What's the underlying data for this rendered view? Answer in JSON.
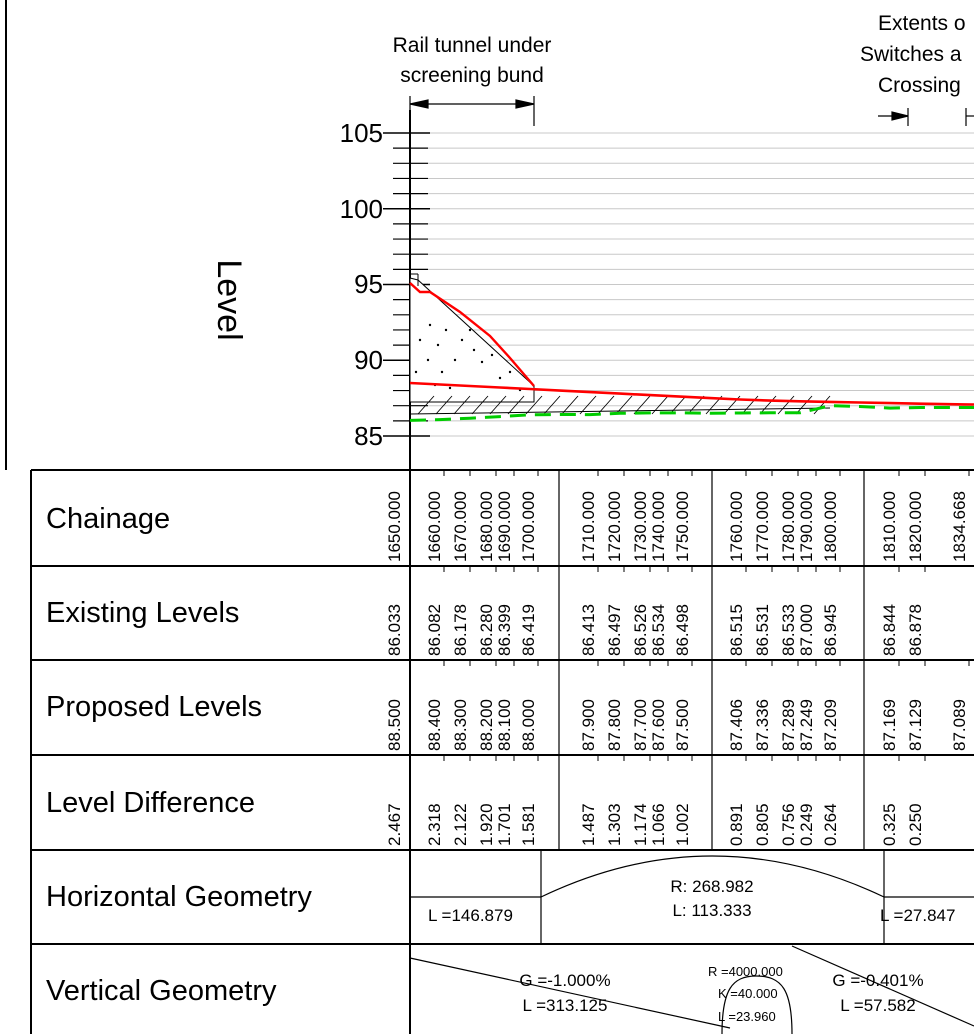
{
  "axis": {
    "label": "Level",
    "ticks": [
      "105",
      "100",
      "95",
      "90",
      "85"
    ]
  },
  "annotations": {
    "tunnel_line1": "Rail tunnel under",
    "tunnel_line2": "screening bund",
    "extents_line1": "Extents o",
    "extents_line2": "Switches a",
    "extents_line3": "Crossing"
  },
  "rows": {
    "chainage": "Chainage",
    "existing": "Existing Levels",
    "proposed": "Proposed Levels",
    "difference": "Level Difference",
    "horizontal": "Horizontal Geometry",
    "vertical": "Vertical Geometry"
  },
  "columns": [
    {
      "chainage": "1650.000",
      "existing": "86.033",
      "proposed": "88.500",
      "difference": "2.467"
    },
    {
      "chainage": "1660.000",
      "existing": "86.082",
      "proposed": "88.400",
      "difference": "2.318"
    },
    {
      "chainage": "1670.000",
      "existing": "86.178",
      "proposed": "88.300",
      "difference": "2.122"
    },
    {
      "chainage": "1680.000",
      "existing": "86.280",
      "proposed": "88.200",
      "difference": "1.920"
    },
    {
      "chainage": "1690.000",
      "existing": "86.399",
      "proposed": "88.100",
      "difference": "1.701"
    },
    {
      "chainage": "1700.000",
      "existing": "86.419",
      "proposed": "88.000",
      "difference": "1.581"
    },
    {
      "chainage": "1710.000",
      "existing": "86.413",
      "proposed": "87.900",
      "difference": "1.487"
    },
    {
      "chainage": "1720.000",
      "existing": "86.497",
      "proposed": "87.800",
      "difference": "1.303"
    },
    {
      "chainage": "1730.000",
      "existing": "86.526",
      "proposed": "87.700",
      "difference": "1.174"
    },
    {
      "chainage": "1740.000",
      "existing": "86.534",
      "proposed": "87.600",
      "difference": "1.066"
    },
    {
      "chainage": "1750.000",
      "existing": "86.498",
      "proposed": "87.500",
      "difference": "1.002"
    },
    {
      "chainage": "1760.000",
      "existing": "86.515",
      "proposed": "87.406",
      "difference": "0.891"
    },
    {
      "chainage": "1770.000",
      "existing": "86.531",
      "proposed": "87.336",
      "difference": "0.805"
    },
    {
      "chainage": "1780.000",
      "existing": "86.533",
      "proposed": "87.289",
      "difference": "0.756"
    },
    {
      "chainage": "1790.000",
      "existing": "87.000",
      "proposed": "87.249",
      "difference": "0.249"
    },
    {
      "chainage": "1800.000",
      "existing": "86.945",
      "proposed": "87.209",
      "difference": "0.264"
    },
    {
      "chainage": "1810.000",
      "existing": "86.844",
      "proposed": "87.169",
      "difference": "0.325"
    },
    {
      "chainage": "1820.000",
      "existing": "86.878",
      "proposed": "87.129",
      "difference": "0.250"
    },
    {
      "chainage": "1834.668",
      "existing": "",
      "proposed": "87.089",
      "difference": ""
    }
  ],
  "horizontal_geometry": {
    "straight1": "L =146.879",
    "curve_r": "R: 268.982",
    "curve_l": "L: 113.333",
    "straight2": "L =27.847"
  },
  "vertical_geometry": {
    "grade1_g": "G =-1.000%",
    "grade1_l": "L =313.125",
    "vc_r": "R =4000.000",
    "vc_k": "K =40.000",
    "vc_l": "L =23.960",
    "grade2_g": "G =-0.401%",
    "grade2_l": "L =57.582"
  },
  "colors": {
    "proposed_line": "#ff0000",
    "existing_line": "#00cc00",
    "grid": "#c8c8c8",
    "ink": "#000000"
  }
}
